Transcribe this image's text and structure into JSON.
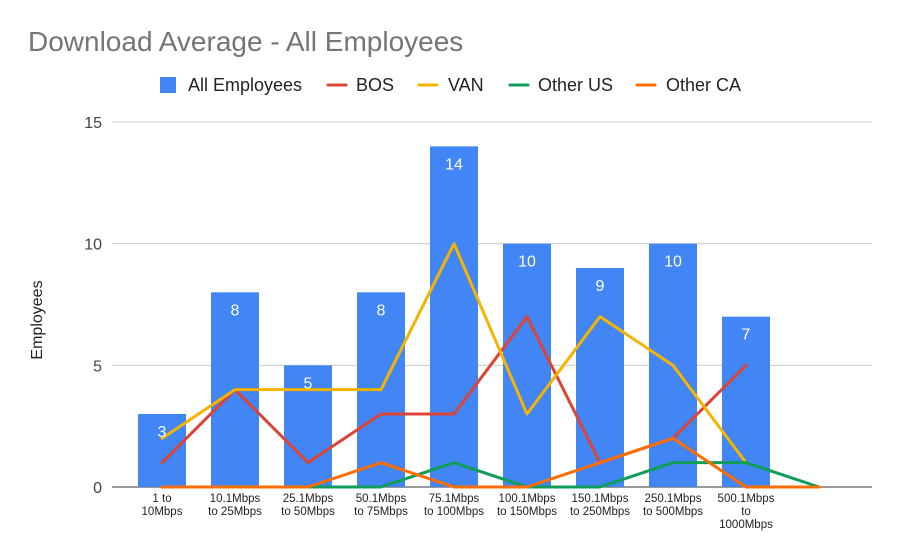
{
  "chart_data": {
    "type": "bar",
    "title": "Download Average - All Employees",
    "ylabel": "Employees",
    "xlabel": "",
    "ylim": [
      0,
      15
    ],
    "yticks": [
      0,
      5,
      10,
      15
    ],
    "grid": true,
    "legend_position": "top",
    "categories": [
      [
        "1 to",
        "10Mbps"
      ],
      [
        "10.1Mbps",
        "to 25Mbps"
      ],
      [
        "25.1Mbps",
        "to 50Mbps"
      ],
      [
        "50.1Mbps",
        "to 75Mbps"
      ],
      [
        "75.1Mbps",
        "to 100Mbps"
      ],
      [
        "100.1Mbps",
        "to 150Mbps"
      ],
      [
        "150.1Mbps",
        "to 250Mbps"
      ],
      [
        "250.1Mbps",
        "to 500Mbps"
      ],
      [
        "500.1Mbps",
        "to",
        "1000Mbps"
      ],
      [
        ""
      ]
    ],
    "bar_series": {
      "name": "All Employees",
      "type": "bar",
      "color": "#4285f4",
      "values": [
        3,
        8,
        5,
        8,
        14,
        10,
        9,
        10,
        7,
        null
      ],
      "data_labels": [
        "3",
        "8",
        "5",
        "8",
        "14",
        "10",
        "9",
        "10",
        "7",
        ""
      ]
    },
    "line_series": [
      {
        "name": "BOS",
        "type": "line",
        "color": "#db4437",
        "values": [
          1,
          4,
          1,
          3,
          3,
          7,
          1,
          2,
          5,
          null
        ]
      },
      {
        "name": "VAN",
        "type": "line",
        "color": "#f4b400",
        "values": [
          2,
          4,
          4,
          4,
          10,
          3,
          7,
          5,
          1,
          null
        ]
      },
      {
        "name": "Other US",
        "type": "line",
        "color": "#0f9d58",
        "values": [
          0,
          0,
          0,
          0,
          1,
          0,
          0,
          1,
          1,
          0
        ]
      },
      {
        "name": "Other CA",
        "type": "line",
        "color": "#ff6d01",
        "values": [
          0,
          0,
          0,
          1,
          0,
          0,
          1,
          2,
          0,
          0
        ]
      }
    ]
  }
}
